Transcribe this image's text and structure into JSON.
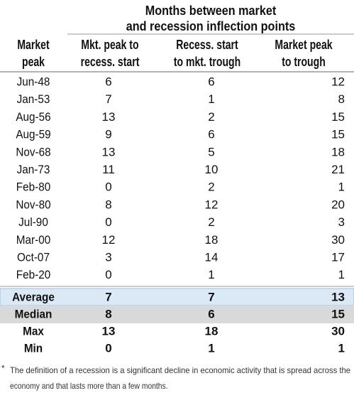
{
  "header": {
    "group_title": [
      "Months between market",
      "and recession inflection points"
    ],
    "columns": [
      [
        "Market",
        "peak"
      ],
      [
        "Mkt. peak to",
        "recess. start"
      ],
      [
        "Recess. start",
        "to mkt. trough"
      ],
      [
        "Market peak",
        "to trough"
      ]
    ]
  },
  "rows": [
    [
      "Jun-48",
      6,
      6,
      12
    ],
    [
      "Jan-53",
      7,
      1,
      8
    ],
    [
      "Aug-56",
      13,
      2,
      15
    ],
    [
      "Aug-59",
      9,
      6,
      15
    ],
    [
      "Nov-68",
      13,
      5,
      18
    ],
    [
      "Jan-73",
      11,
      10,
      21
    ],
    [
      "Feb-80",
      0,
      2,
      1
    ],
    [
      "Nov-80",
      8,
      12,
      20
    ],
    [
      "Jul-90",
      0,
      2,
      3
    ],
    [
      "Mar-00",
      12,
      18,
      30
    ],
    [
      "Oct-07",
      3,
      14,
      17
    ],
    [
      "Feb-20",
      0,
      1,
      1
    ]
  ],
  "summary": [
    [
      "Average",
      7,
      7,
      13
    ],
    [
      "Median",
      8,
      6,
      15
    ],
    [
      "Max",
      13,
      18,
      30
    ],
    [
      "Min",
      0,
      1,
      1
    ]
  ],
  "footnote": {
    "marker": "*",
    "lines": [
      "The definition of a recession is a significant decline in economic activity that is spread across the",
      "economy and that lasts more than a few months."
    ]
  }
}
